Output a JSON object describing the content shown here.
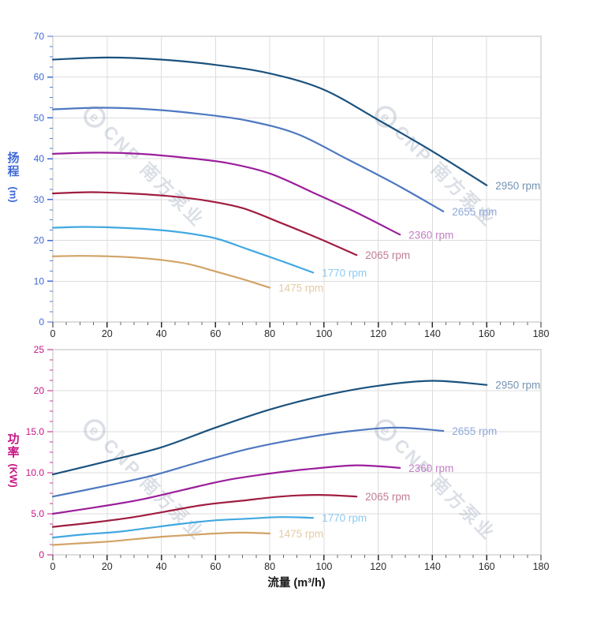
{
  "x_axis_title": "流量 (m³/h)",
  "watermark": {
    "logo_char": "e",
    "text": "CNP 南方泵业",
    "color": "#8C96AF"
  },
  "chart_data": [
    {
      "type": "line",
      "title": "Pump head curves",
      "ylabel": "扬程 (m)",
      "y_title_chars": [
        "扬",
        "程"
      ],
      "y_unit": "(m)",
      "xlabel": "流量 (m³/h)",
      "xlim": [
        0,
        180
      ],
      "ylim": [
        0,
        70
      ],
      "x_major": 20,
      "x_minor": 5,
      "y_major": 10,
      "y_minor": 2.5,
      "x_tick_labels": [
        "0",
        "20",
        "40",
        "60",
        "80",
        "100",
        "120",
        "140",
        "160",
        "180"
      ],
      "y_tick_labels": [
        "0",
        "10",
        "20",
        "30",
        "40",
        "50",
        "60",
        "70"
      ],
      "axis_color": "#3D68D8",
      "grid": true,
      "legend_position": "curve-end-labels",
      "series": [
        {
          "name": "2950 rpm",
          "color": "#1B527E",
          "label_color": "#7493B2",
          "x": [
            0,
            20,
            40,
            60,
            80,
            100,
            120,
            140,
            160
          ],
          "y": [
            64.3,
            64.8,
            64.3,
            63.0,
            60.9,
            56.9,
            49.5,
            41.8,
            33.5
          ]
        },
        {
          "name": "2655 rpm",
          "color": "#4E78C0",
          "label_color": "#8FA8DA",
          "x": [
            0,
            18,
            36,
            54,
            72,
            90,
            108,
            126,
            144
          ],
          "y": [
            52.1,
            52.5,
            52.1,
            51.0,
            49.3,
            46.1,
            40.1,
            33.9,
            27.1
          ]
        },
        {
          "name": "2360 rpm",
          "color": "#9B1F9B",
          "label_color": "#C27FC2",
          "x": [
            0,
            16,
            32,
            48,
            64,
            80,
            96,
            112,
            128
          ],
          "y": [
            41.2,
            41.5,
            41.2,
            40.3,
            39.0,
            36.4,
            31.7,
            26.8,
            21.4
          ]
        },
        {
          "name": "2065 rpm",
          "color": "#A01D40",
          "label_color": "#C07E92",
          "x": [
            0,
            14,
            28,
            42,
            56,
            70,
            84,
            98,
            112
          ],
          "y": [
            31.5,
            31.8,
            31.5,
            30.9,
            29.8,
            27.9,
            24.3,
            20.5,
            16.4
          ]
        },
        {
          "name": "1770 rpm",
          "color": "#41A8E1",
          "label_color": "#8ECBF0",
          "x": [
            0,
            12,
            24,
            36,
            48,
            60,
            72,
            84,
            96
          ],
          "y": [
            23.1,
            23.3,
            23.1,
            22.7,
            21.9,
            20.5,
            17.8,
            15.0,
            12.1
          ]
        },
        {
          "name": "1475 rpm",
          "color": "#D2A366",
          "label_color": "#E4CBA4",
          "x": [
            0,
            10,
            20,
            30,
            40,
            50,
            60,
            70,
            80
          ],
          "y": [
            16.1,
            16.2,
            16.1,
            15.8,
            15.2,
            14.2,
            12.4,
            10.5,
            8.4
          ]
        }
      ]
    },
    {
      "type": "line",
      "title": "Pump power curves",
      "ylabel": "功率 (KW)",
      "y_title_chars": [
        "功",
        "率"
      ],
      "y_unit": "(KW)",
      "xlabel": "流量 (m³/h)",
      "xlim": [
        0,
        180
      ],
      "ylim": [
        0,
        25
      ],
      "x_major": 20,
      "x_minor": 5,
      "y_major": 5,
      "y_minor": 1.25,
      "x_tick_labels": [
        "0",
        "20",
        "40",
        "60",
        "80",
        "100",
        "120",
        "140",
        "160",
        "180"
      ],
      "y_tick_labels": [
        "0",
        "5.0",
        "10.0",
        "15.0",
        "20",
        "25"
      ],
      "axis_color": "#C71585",
      "grid": true,
      "legend_position": "curve-end-labels",
      "series": [
        {
          "name": "2950 rpm",
          "color": "#1B527E",
          "label_color": "#7493B2",
          "x": [
            0,
            20,
            40,
            60,
            80,
            100,
            120,
            140,
            160
          ],
          "y": [
            9.8,
            11.4,
            13.1,
            15.5,
            17.7,
            19.4,
            20.6,
            21.2,
            20.7
          ]
        },
        {
          "name": "2655 rpm",
          "color": "#4E78C0",
          "label_color": "#8FA8DA",
          "x": [
            0,
            18,
            36,
            54,
            72,
            90,
            108,
            126,
            144
          ],
          "y": [
            7.1,
            8.3,
            9.6,
            11.3,
            12.9,
            14.1,
            15.0,
            15.5,
            15.1
          ]
        },
        {
          "name": "2360 rpm",
          "color": "#9B1F9B",
          "label_color": "#C27FC2",
          "x": [
            0,
            16,
            32,
            48,
            64,
            80,
            96,
            112,
            128
          ],
          "y": [
            5.0,
            5.8,
            6.7,
            7.9,
            9.1,
            9.9,
            10.5,
            10.9,
            10.6
          ]
        },
        {
          "name": "2065 rpm",
          "color": "#A01D40",
          "label_color": "#C07E92",
          "x": [
            0,
            14,
            28,
            42,
            56,
            70,
            84,
            98,
            112
          ],
          "y": [
            3.4,
            3.9,
            4.5,
            5.3,
            6.1,
            6.6,
            7.1,
            7.3,
            7.1
          ]
        },
        {
          "name": "1770 rpm",
          "color": "#41A8E1",
          "label_color": "#8ECBF0",
          "x": [
            0,
            12,
            24,
            36,
            48,
            60,
            72,
            84,
            96
          ],
          "y": [
            2.1,
            2.5,
            2.8,
            3.3,
            3.8,
            4.2,
            4.4,
            4.6,
            4.5
          ]
        },
        {
          "name": "1475 rpm",
          "color": "#D2A366",
          "label_color": "#E4CBA4",
          "x": [
            0,
            10,
            20,
            30,
            40,
            50,
            60,
            70,
            80
          ],
          "y": [
            1.2,
            1.4,
            1.6,
            1.9,
            2.2,
            2.4,
            2.6,
            2.7,
            2.6
          ]
        }
      ]
    }
  ]
}
